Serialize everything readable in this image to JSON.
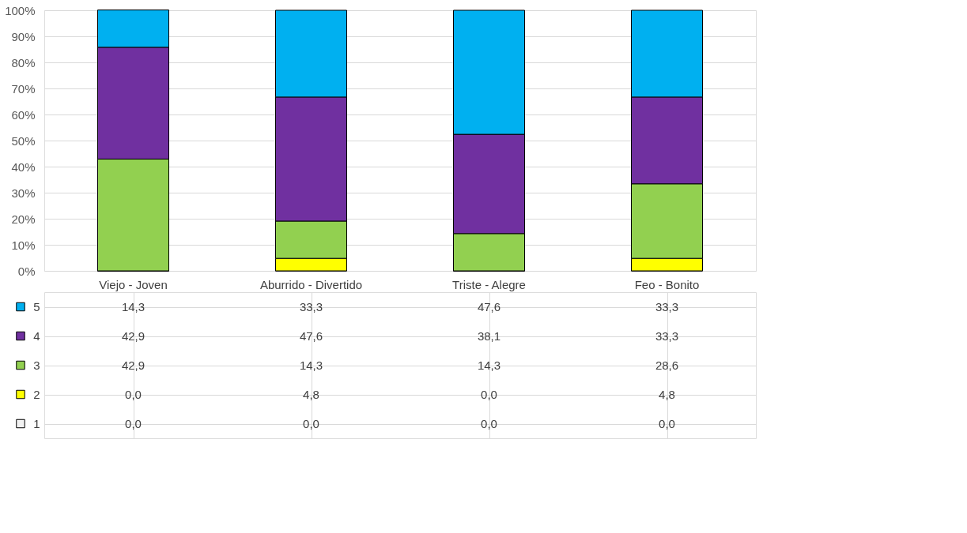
{
  "chart_data": {
    "type": "bar",
    "stacked": true,
    "categories": [
      "Viejo - Joven",
      "Aburrido - Divertido",
      "Triste - Alegre",
      "Feo - Bonito"
    ],
    "series": [
      {
        "name": "1",
        "color": "#f2f2f2",
        "values": [
          0.0,
          0.0,
          0.0,
          0.0
        ],
        "value_labels": [
          "0,0",
          "0,0",
          "0,0",
          "0,0"
        ]
      },
      {
        "name": "2",
        "color": "#ffff00",
        "values": [
          0.0,
          4.8,
          0.0,
          4.8
        ],
        "value_labels": [
          "0,0",
          "4,8",
          "0,0",
          "4,8"
        ]
      },
      {
        "name": "3",
        "color": "#92d050",
        "values": [
          42.9,
          14.3,
          14.3,
          28.6
        ],
        "value_labels": [
          "42,9",
          "14,3",
          "14,3",
          "28,6"
        ]
      },
      {
        "name": "4",
        "color": "#7030a0",
        "values": [
          42.9,
          47.6,
          38.1,
          33.3
        ],
        "value_labels": [
          "42,9",
          "47,6",
          "38,1",
          "33,3"
        ]
      },
      {
        "name": "5",
        "color": "#00b0f0",
        "values": [
          14.3,
          33.3,
          47.6,
          33.3
        ],
        "value_labels": [
          "14,3",
          "33,3",
          "47,6",
          "33,3"
        ]
      }
    ],
    "ylim": [
      0,
      100
    ],
    "yticks": [
      {
        "value": 0,
        "label": "0%"
      },
      {
        "value": 10,
        "label": "10%"
      },
      {
        "value": 20,
        "label": "20%"
      },
      {
        "value": 30,
        "label": "30%"
      },
      {
        "value": 40,
        "label": "40%"
      },
      {
        "value": 50,
        "label": "50%"
      },
      {
        "value": 60,
        "label": "60%"
      },
      {
        "value": 70,
        "label": "70%"
      },
      {
        "value": 80,
        "label": "80%"
      },
      {
        "value": 90,
        "label": "90%"
      },
      {
        "value": 100,
        "label": "100%"
      }
    ],
    "grid": "y",
    "legend": "bottom left"
  }
}
